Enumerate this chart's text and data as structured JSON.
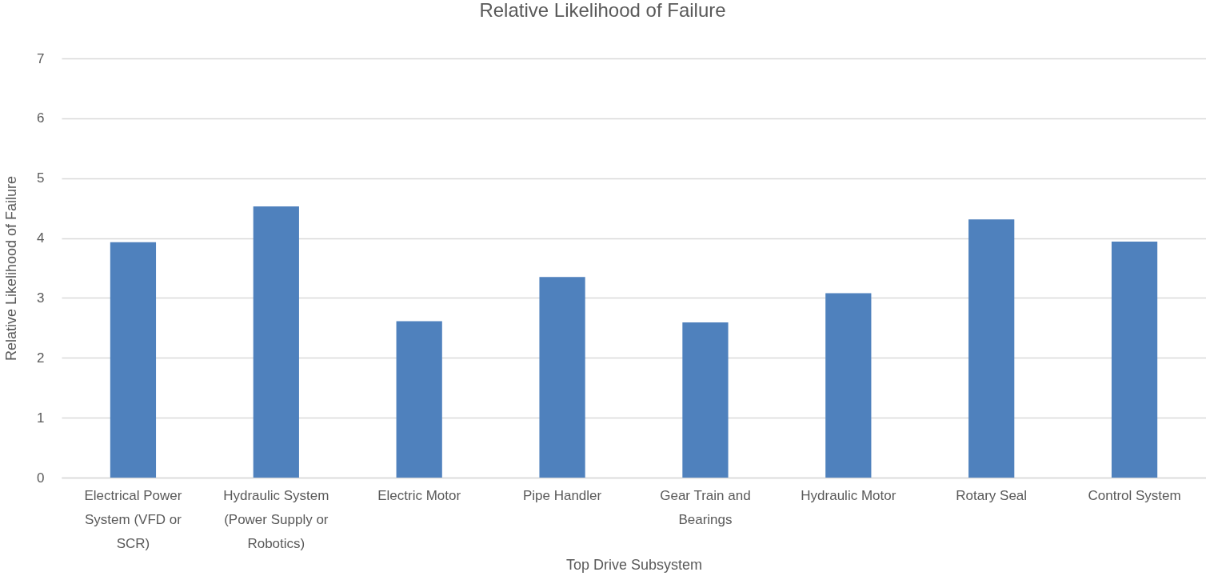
{
  "chart_data": {
    "type": "bar",
    "title": "Relative Likelihood of Failure",
    "xlabel": "Top Drive Subsystem",
    "ylabel": "Relative Likelihood of Failure",
    "categories": [
      "Electrical Power System (VFD or SCR)",
      "Hydraulic System (Power Supply or Robotics)",
      "Electric Motor",
      "Pipe Handler",
      "Gear Train and Bearings",
      "Hydraulic Motor",
      "Rotary Seal",
      "Control System"
    ],
    "values": [
      3.93,
      4.53,
      2.61,
      3.35,
      2.59,
      3.08,
      4.31,
      3.94
    ],
    "color": "#4f81bd",
    "ylim": [
      0,
      7
    ],
    "yticks": [
      0,
      1,
      2,
      3,
      4,
      5,
      6,
      7
    ],
    "grid": "y"
  }
}
